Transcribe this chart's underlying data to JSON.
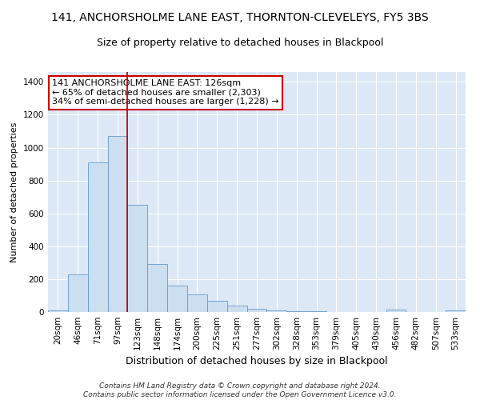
{
  "title": "141, ANCHORSHOLME LANE EAST, THORNTON-CLEVELEYS, FY5 3BS",
  "subtitle": "Size of property relative to detached houses in Blackpool",
  "xlabel": "Distribution of detached houses by size in Blackpool",
  "ylabel": "Number of detached properties",
  "categories": [
    "20sqm",
    "46sqm",
    "71sqm",
    "97sqm",
    "123sqm",
    "148sqm",
    "174sqm",
    "200sqm",
    "225sqm",
    "251sqm",
    "277sqm",
    "302sqm",
    "328sqm",
    "353sqm",
    "379sqm",
    "405sqm",
    "430sqm",
    "456sqm",
    "482sqm",
    "507sqm",
    "533sqm"
  ],
  "values": [
    10,
    230,
    910,
    1070,
    650,
    290,
    160,
    105,
    70,
    40,
    20,
    10,
    5,
    3,
    2,
    2,
    1,
    15,
    1,
    1,
    8
  ],
  "bar_color": "#ccdff0",
  "bar_edge_color": "#6699cc",
  "vline_x_index": 3.5,
  "vline_color": "#cc0000",
  "annotation_text": "141 ANCHORSHOLME LANE EAST: 126sqm\n← 65% of detached houses are smaller (2,303)\n34% of semi-detached houses are larger (1,228) →",
  "annotation_box_facecolor": "white",
  "annotation_box_edgecolor": "#cc0000",
  "ylim": [
    0,
    1460
  ],
  "bg_color": "#e8eef5",
  "plot_bg_color": "#dce8f5",
  "footer": "Contains HM Land Registry data © Crown copyright and database right 2024.\nContains public sector information licensed under the Open Government Licence v3.0.",
  "title_fontsize": 10,
  "subtitle_fontsize": 9,
  "xlabel_fontsize": 9,
  "ylabel_fontsize": 8,
  "tick_fontsize": 7.5,
  "annotation_fontsize": 8,
  "footer_fontsize": 6.5,
  "yticks": [
    0,
    200,
    400,
    600,
    800,
    1000,
    1200,
    1400
  ]
}
